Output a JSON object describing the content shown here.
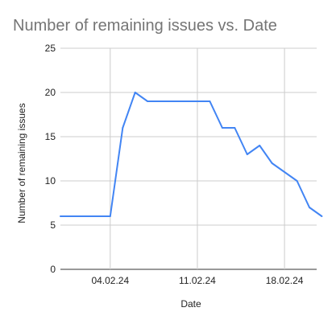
{
  "chart_data": {
    "type": "line",
    "title": "Number of remaining issues vs. Date",
    "xlabel": "Date",
    "ylabel": "Number of remaining issues",
    "ylim": [
      0,
      25
    ],
    "yticks": [
      "0",
      "5",
      "10",
      "15",
      "20",
      "25"
    ],
    "xticks": [
      "04.02.24",
      "11.02.24",
      "18.02.24"
    ],
    "grid": true,
    "series": [
      {
        "color": "#4285f4",
        "points": [
          {
            "x": "2024-01-31",
            "y": 6
          },
          {
            "x": "2024-02-04",
            "y": 6
          },
          {
            "x": "2024-02-05",
            "y": 16
          },
          {
            "x": "2024-02-06",
            "y": 20
          },
          {
            "x": "2024-02-07",
            "y": 19
          },
          {
            "x": "2024-02-12",
            "y": 19
          },
          {
            "x": "2024-02-13",
            "y": 16
          },
          {
            "x": "2024-02-14",
            "y": 16
          },
          {
            "x": "2024-02-15",
            "y": 13
          },
          {
            "x": "2024-02-16",
            "y": 14
          },
          {
            "x": "2024-02-17",
            "y": 12
          },
          {
            "x": "2024-02-19",
            "y": 10
          },
          {
            "x": "2024-02-20",
            "y": 7
          },
          {
            "x": "2024-02-21",
            "y": 6
          }
        ]
      }
    ]
  }
}
